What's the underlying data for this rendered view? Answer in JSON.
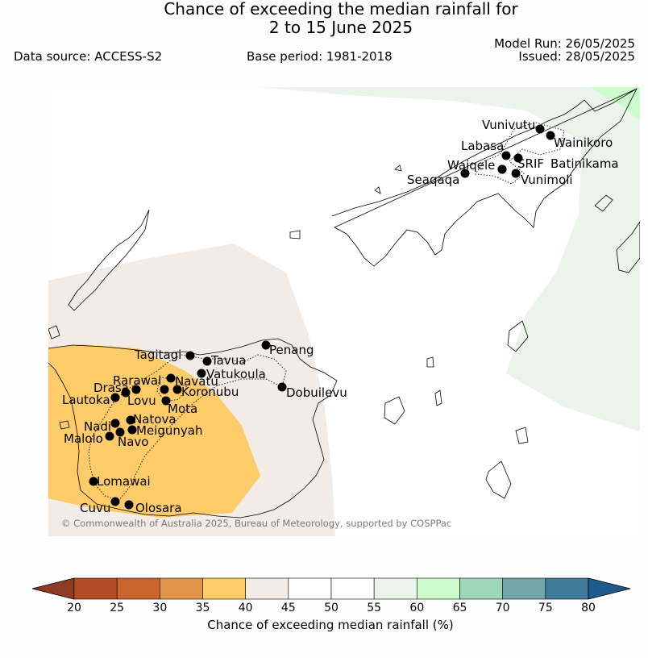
{
  "title": {
    "line1": "Chance of exceeding the median rainfall for",
    "line2": "2 to 15 June 2025"
  },
  "header": {
    "data_source": "Data source: ACCESS-S2",
    "base_period": "Base period: 1981-2018",
    "model_run": "Model Run: 26/05/2025",
    "issued": "Issued: 28/05/2025"
  },
  "map": {
    "copyright": "© Commonwealth of Australia 2025, Bureau of Meteorology, supported by COSPPac",
    "stations": [
      "Vunivutu",
      "Wainikoro",
      "Labasa",
      "SRIF",
      "Batinikama",
      "Waiqele",
      "Seaqaqa",
      "Vunimoli",
      "Tagitagi",
      "Tavua",
      "Penang",
      "Vatukoula",
      "Rarawai",
      "Navatu",
      "Drasa",
      "Koronubu",
      "Lautoka",
      "Lovu",
      "Dobuilevu",
      "Mota",
      "Natova",
      "Nadi",
      "Meigunyah",
      "Malolo",
      "Navo",
      "Lomawai",
      "Cuvu",
      "Olosara"
    ]
  },
  "colorbar": {
    "ticks": [
      "20",
      "25",
      "30",
      "35",
      "40",
      "45",
      "50",
      "55",
      "60",
      "65",
      "70",
      "75",
      "80"
    ],
    "colors": [
      "#b34d28",
      "#cb6530",
      "#e09548",
      "#fdcb67",
      "#f2ebe6",
      "#ffffff",
      "#ffffff",
      "#ebf4ea",
      "#ccfccb",
      "#9ed6ba",
      "#72a6a7",
      "#3f7b9b"
    ],
    "low_end_color": "#8f3a22",
    "high_end_color": "#1f5a8c",
    "label": "Chance of exceeding median rainfall (%)"
  }
}
